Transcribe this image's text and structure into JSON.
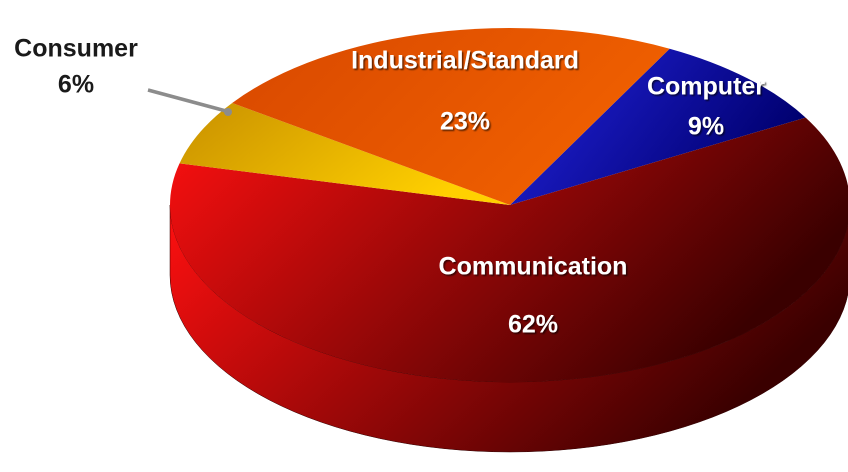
{
  "chart_data": {
    "type": "pie3d",
    "categories": [
      "Computer",
      "Communication",
      "Consumer",
      "Industrial/Standard"
    ],
    "values": [
      9,
      62,
      6,
      23
    ],
    "value_labels": [
      "9%",
      "62%",
      "6%",
      "23%"
    ],
    "colors": [
      [
        "#2424e0",
        "#000070"
      ],
      [
        "#ff1010",
        "#3a0000"
      ],
      [
        "#c89000",
        "#ffd000"
      ],
      [
        "#d84800",
        "#f06000"
      ]
    ]
  }
}
